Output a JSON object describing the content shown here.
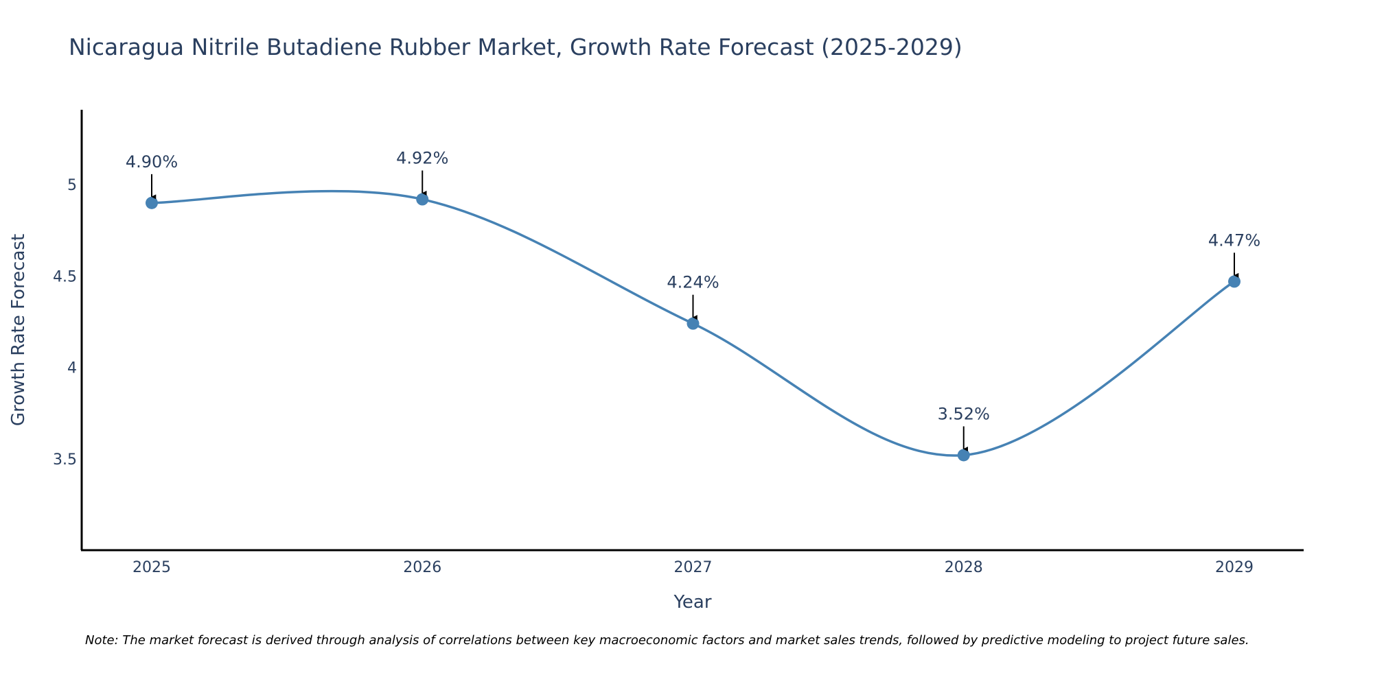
{
  "chart_data": {
    "type": "line",
    "title": "Nicaragua Nitrile Butadiene Rubber Market, Growth Rate Forecast (2025-2029)",
    "xlabel": "Year",
    "ylabel": "Growth Rate Forecast",
    "categories": [
      "2025",
      "2026",
      "2027",
      "2028",
      "2029"
    ],
    "series": [
      {
        "name": "Growth Rate Forecast",
        "values": [
          4.9,
          4.92,
          4.24,
          3.52,
          4.47
        ],
        "labels": [
          "4.90%",
          "4.92%",
          "4.24%",
          "3.52%",
          "4.47%"
        ],
        "color": "#4682b4"
      }
    ],
    "ylim": [
      3.0,
      5.41
    ],
    "yticks": [
      3.5,
      4,
      4.5,
      5
    ],
    "ytick_labels": [
      "3.5",
      "4",
      "4.5",
      "5"
    ],
    "grid": false,
    "line_shape": "spline",
    "annotation_arrows": true
  },
  "note": "Note: The market forecast is derived through analysis of correlations between key macroeconomic factors and market sales trends, followed by predictive modeling to project future sales."
}
